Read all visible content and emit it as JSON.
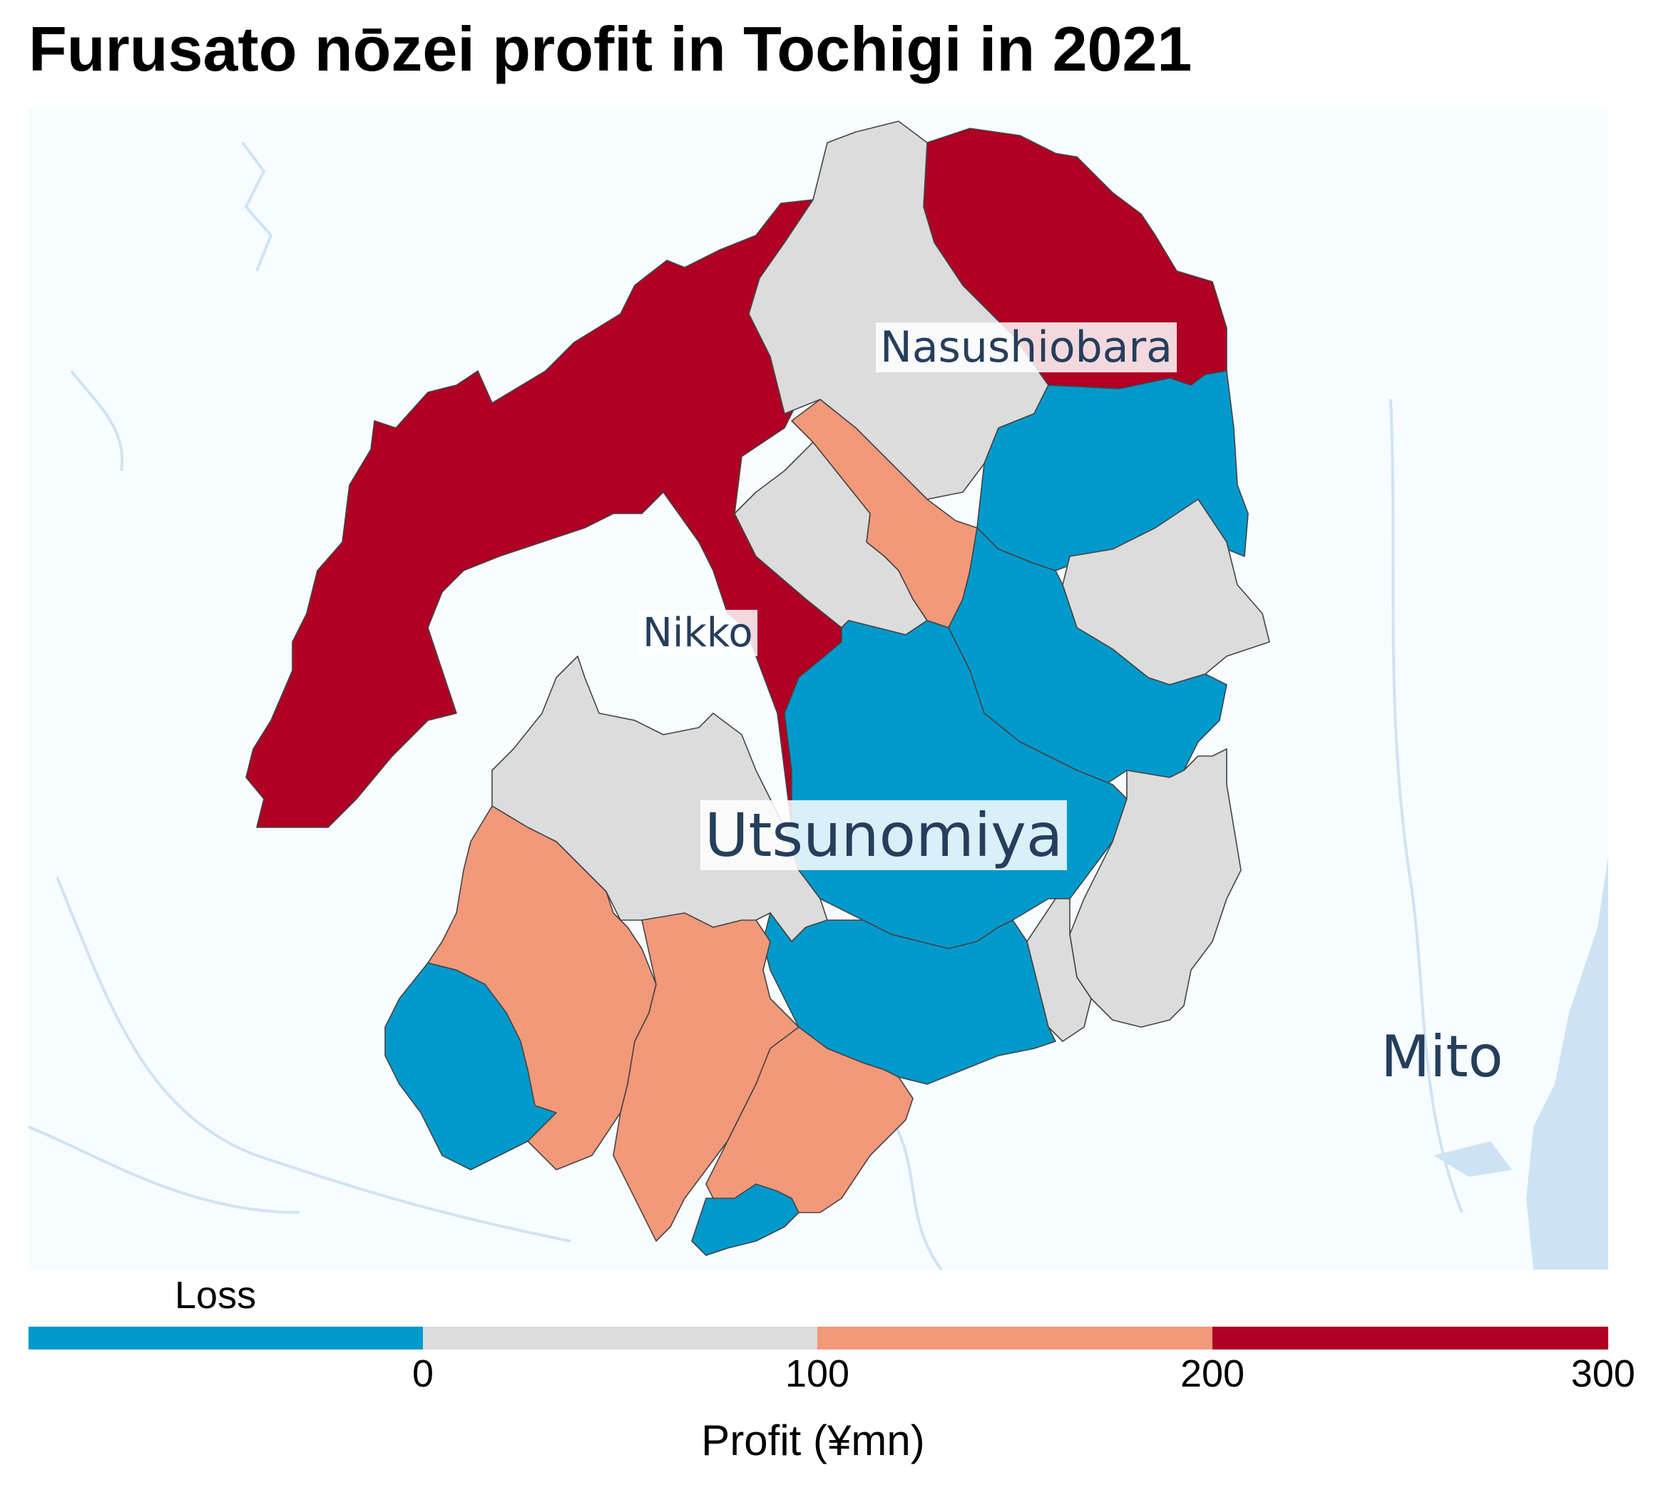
{
  "title": "Furusato nōzei profit in Tochigi in 2021",
  "places": {
    "nasushiobara": "Nasushiobara",
    "nikko": "Nikko",
    "utsunomiya": "Utsunomiya",
    "mito": "Mito"
  },
  "legend": {
    "title": "Profit (¥mn)",
    "loss_label": "Loss",
    "ticks": [
      "0",
      "100",
      "200",
      "300"
    ],
    "bins": [
      {
        "label": "Loss",
        "color": "#0099cc"
      },
      {
        "label": "0–100",
        "color": "#dcdcdc"
      },
      {
        "label": "100–200",
        "color": "#f2997a"
      },
      {
        "label": "200–300",
        "color": "#b00024"
      }
    ]
  },
  "colors": {
    "loss": "#0099cc",
    "low": "#dcdcdc",
    "mid": "#f2997a",
    "high": "#b00024",
    "background": "#f7fcff",
    "water": "#cde3f5"
  }
}
